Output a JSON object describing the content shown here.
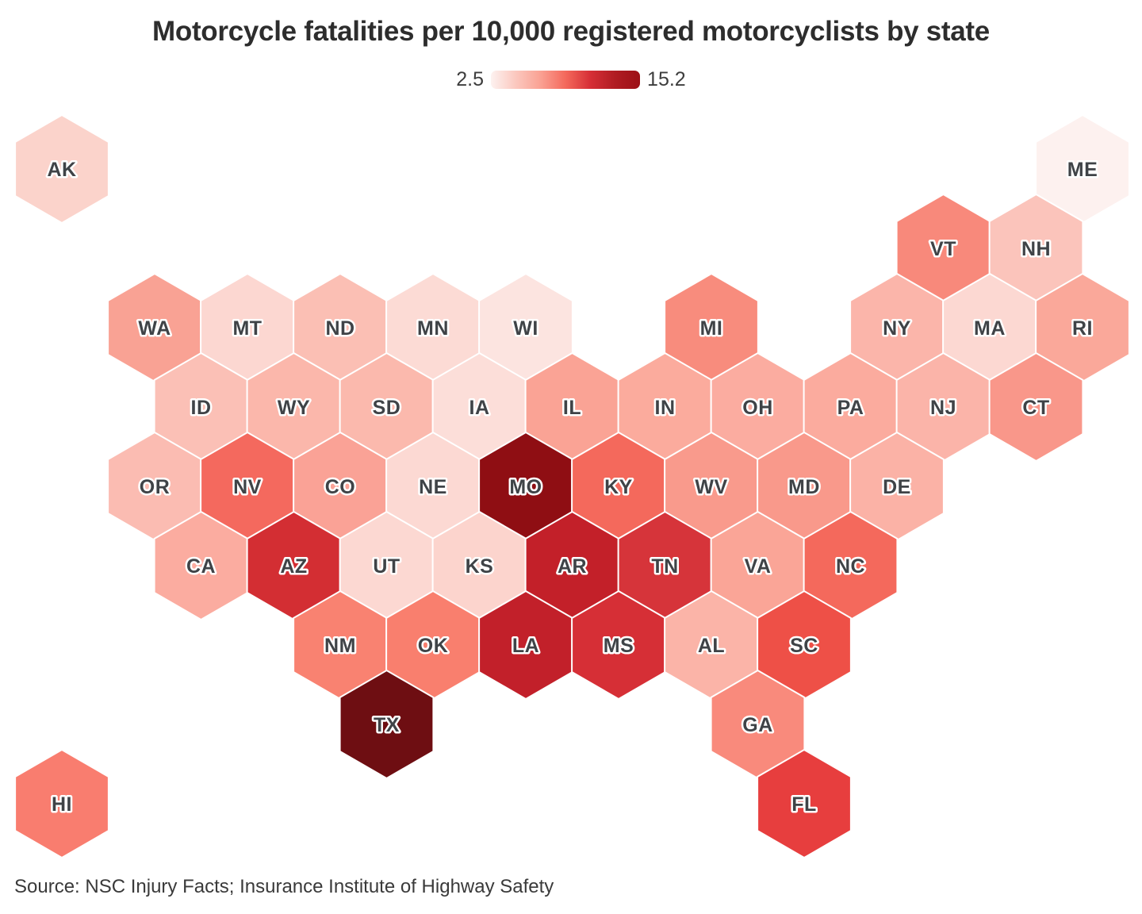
{
  "page": {
    "title": "Motorcycle fatalities per 10,000 registered motorcyclists by state",
    "source": "Source: NSC Injury Facts; Insurance Institute of Highway Safety"
  },
  "legend": {
    "min_label": "2.5",
    "max_label": "15.2",
    "gradient": [
      "#fdf2f0",
      "#fbc8bf",
      "#faa193",
      "#f4695c",
      "#d62f36",
      "#b01c22",
      "#9c1016"
    ]
  },
  "chart_data": {
    "type": "heatmap",
    "variant": "hex-tile-map-usa",
    "title": "Motorcycle fatalities per 10,000 registered motorcyclists by state",
    "colorbar": {
      "min": 2.5,
      "max": 15.2,
      "min_color": "#fdf2f0",
      "max_color": "#9c1016"
    },
    "source": "Source: NSC Injury Facts; Insurance Institute of Highway Safety",
    "states": [
      {
        "abbr": "AK",
        "row": 0,
        "col": 0,
        "color": "#fbd3cb",
        "value_est": 3.8
      },
      {
        "abbr": "ME",
        "row": 0,
        "col": 11,
        "color": "#fdf1ef",
        "value_est": 2.5
      },
      {
        "abbr": "VT",
        "row": 1,
        "col": 9,
        "color": "#f8897b",
        "value_est": 6.8
      },
      {
        "abbr": "NH",
        "row": 1,
        "col": 10,
        "color": "#fbc4bb",
        "value_est": 4.4
      },
      {
        "abbr": "WA",
        "row": 2,
        "col": 1,
        "color": "#f9a294",
        "value_est": 5.8
      },
      {
        "abbr": "MT",
        "row": 2,
        "col": 2,
        "color": "#fcd7d1",
        "value_est": 3.7
      },
      {
        "abbr": "ND",
        "row": 2,
        "col": 3,
        "color": "#fbbfb4",
        "value_est": 4.6
      },
      {
        "abbr": "MN",
        "row": 2,
        "col": 4,
        "color": "#fcdbd5",
        "value_est": 3.5
      },
      {
        "abbr": "WI",
        "row": 2,
        "col": 5,
        "color": "#fce4e0",
        "value_est": 3.0
      },
      {
        "abbr": "MI",
        "row": 2,
        "col": 7,
        "color": "#f88c7d",
        "value_est": 6.7
      },
      {
        "abbr": "NY",
        "row": 2,
        "col": 9,
        "color": "#fbb5aa",
        "value_est": 5.0
      },
      {
        "abbr": "MA",
        "row": 2,
        "col": 10,
        "color": "#fcd8d2",
        "value_est": 3.7
      },
      {
        "abbr": "RI",
        "row": 2,
        "col": 11,
        "color": "#faa89a",
        "value_est": 5.6
      },
      {
        "abbr": "ID",
        "row": 3,
        "col": 1,
        "color": "#fbc0b6",
        "value_est": 4.6
      },
      {
        "abbr": "WY",
        "row": 3,
        "col": 2,
        "color": "#fbb7ab",
        "value_est": 5.0
      },
      {
        "abbr": "SD",
        "row": 3,
        "col": 3,
        "color": "#fbb9ad",
        "value_est": 4.9
      },
      {
        "abbr": "IA",
        "row": 3,
        "col": 4,
        "color": "#fcded9",
        "value_est": 3.3
      },
      {
        "abbr": "IL",
        "row": 3,
        "col": 5,
        "color": "#faa395",
        "value_est": 5.8
      },
      {
        "abbr": "IN",
        "row": 3,
        "col": 6,
        "color": "#fbab9d",
        "value_est": 5.5
      },
      {
        "abbr": "OH",
        "row": 3,
        "col": 7,
        "color": "#fbaca0",
        "value_est": 5.4
      },
      {
        "abbr": "PA",
        "row": 3,
        "col": 8,
        "color": "#fbab9e",
        "value_est": 5.4
      },
      {
        "abbr": "NJ",
        "row": 3,
        "col": 9,
        "color": "#fbb4a9",
        "value_est": 5.1
      },
      {
        "abbr": "CT",
        "row": 3,
        "col": 10,
        "color": "#f9978a",
        "value_est": 6.3
      },
      {
        "abbr": "OR",
        "row": 4,
        "col": 1,
        "color": "#fbbcb2",
        "value_est": 4.7
      },
      {
        "abbr": "NV",
        "row": 4,
        "col": 2,
        "color": "#f4695e",
        "value_est": 7.9
      },
      {
        "abbr": "CO",
        "row": 4,
        "col": 3,
        "color": "#faa296",
        "value_est": 5.8
      },
      {
        "abbr": "NE",
        "row": 4,
        "col": 4,
        "color": "#fcd9d3",
        "value_est": 3.6
      },
      {
        "abbr": "MO",
        "row": 4,
        "col": 5,
        "color": "#8f0e13",
        "value_est": 13.6
      },
      {
        "abbr": "KY",
        "row": 4,
        "col": 6,
        "color": "#f4695c",
        "value_est": 7.9
      },
      {
        "abbr": "WV",
        "row": 4,
        "col": 7,
        "color": "#f99a8c",
        "value_est": 6.1
      },
      {
        "abbr": "MD",
        "row": 4,
        "col": 8,
        "color": "#f9998b",
        "value_est": 6.2
      },
      {
        "abbr": "DE",
        "row": 4,
        "col": 9,
        "color": "#fbb2a6",
        "value_est": 5.2
      },
      {
        "abbr": "CA",
        "row": 5,
        "col": 1,
        "color": "#fbaca0",
        "value_est": 5.4
      },
      {
        "abbr": "AZ",
        "row": 5,
        "col": 2,
        "color": "#d32e33",
        "value_est": 10.2
      },
      {
        "abbr": "UT",
        "row": 5,
        "col": 3,
        "color": "#fcd8d2",
        "value_est": 3.7
      },
      {
        "abbr": "KS",
        "row": 5,
        "col": 4,
        "color": "#fcd4cd",
        "value_est": 3.8
      },
      {
        "abbr": "AR",
        "row": 5,
        "col": 5,
        "color": "#c32029",
        "value_est": 11.0
      },
      {
        "abbr": "TN",
        "row": 5,
        "col": 6,
        "color": "#d6343a",
        "value_est": 9.9
      },
      {
        "abbr": "VA",
        "row": 5,
        "col": 7,
        "color": "#faa597",
        "value_est": 5.7
      },
      {
        "abbr": "NC",
        "row": 5,
        "col": 8,
        "color": "#f4695c",
        "value_est": 7.9
      },
      {
        "abbr": "NM",
        "row": 6,
        "col": 3,
        "color": "#f98271",
        "value_est": 7.1
      },
      {
        "abbr": "OK",
        "row": 6,
        "col": 4,
        "color": "#f97f6e",
        "value_est": 7.2
      },
      {
        "abbr": "LA",
        "row": 6,
        "col": 5,
        "color": "#c2202a",
        "value_est": 11.0
      },
      {
        "abbr": "MS",
        "row": 6,
        "col": 6,
        "color": "#d62f36",
        "value_est": 10.0
      },
      {
        "abbr": "AL",
        "row": 6,
        "col": 7,
        "color": "#fbb4a8",
        "value_est": 5.1
      },
      {
        "abbr": "SC",
        "row": 6,
        "col": 8,
        "color": "#ee5047",
        "value_est": 8.6
      },
      {
        "abbr": "TX",
        "row": 7,
        "col": 3,
        "color": "#6e0e12",
        "value_est": 15.2
      },
      {
        "abbr": "GA",
        "row": 7,
        "col": 7,
        "color": "#f98a7c",
        "value_est": 6.8
      },
      {
        "abbr": "HI",
        "row": 8,
        "col": 0,
        "color": "#f97d6f",
        "value_est": 7.3
      },
      {
        "abbr": "FL",
        "row": 8,
        "col": 8,
        "color": "#e73e3e",
        "value_est": 9.2
      }
    ]
  }
}
